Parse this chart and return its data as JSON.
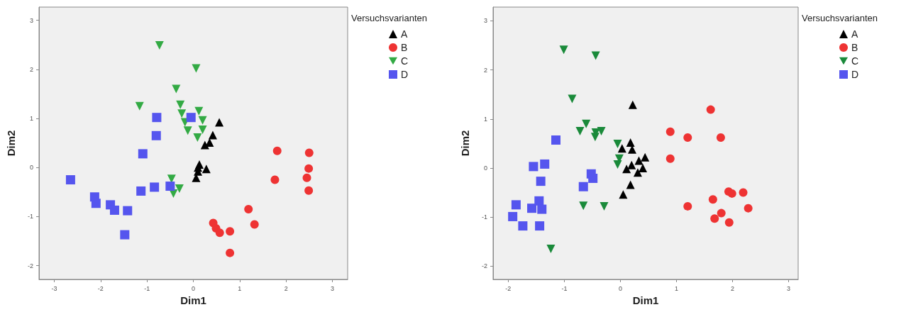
{
  "chart_data": [
    {
      "type": "scatter",
      "xlabel": "Dim1",
      "ylabel": "Dim2",
      "legend_title": "Versuchsvarianten",
      "legend": "top right",
      "xlim": [
        -3.33,
        3.33
      ],
      "ylim": [
        -2.28,
        3.27
      ],
      "xticks": [
        -3,
        -2,
        -1,
        0,
        1,
        2,
        3
      ],
      "yticks": [
        -2,
        -1,
        0,
        1,
        2,
        3
      ],
      "series": [
        {
          "name": "A",
          "color": "#000000",
          "marker": "triangle",
          "x": [
            0.56,
            0.42,
            0.35,
            0.25,
            0.13,
            0.28,
            0.1,
            0.06,
            0.1
          ],
          "values": [
            0.92,
            0.66,
            0.51,
            0.46,
            0.06,
            -0.03,
            -0.08,
            -0.21,
            0.0
          ]
        },
        {
          "name": "B",
          "color": "#ee3333",
          "marker": "circle",
          "x": [
            1.81,
            2.5,
            2.49,
            1.76,
            2.45,
            2.49,
            1.19,
            1.32,
            0.43,
            0.49,
            0.57,
            0.79,
            0.79
          ],
          "values": [
            0.34,
            0.3,
            -0.02,
            -0.25,
            -0.21,
            -0.47,
            -0.85,
            -1.16,
            -1.13,
            -1.24,
            -1.33,
            -1.3,
            -1.74
          ]
        },
        {
          "name": "C",
          "color": "#33aa44",
          "marker": "triangle-down",
          "x": [
            -0.73,
            0.06,
            -0.37,
            -1.16,
            -0.28,
            -0.25,
            -0.18,
            -0.12,
            0.12,
            0.2,
            0.2,
            0.09,
            -0.47,
            -0.3,
            -0.43
          ],
          "values": [
            2.49,
            2.02,
            1.6,
            1.25,
            1.28,
            1.1,
            0.92,
            0.75,
            1.15,
            0.96,
            0.77,
            0.61,
            -0.23,
            -0.43,
            -0.53
          ]
        },
        {
          "name": "D",
          "color": "#5555ee",
          "marker": "square",
          "x": [
            -0.79,
            -0.05,
            -0.8,
            -1.09,
            -2.65,
            -1.13,
            -0.84,
            -0.5,
            -2.13,
            -2.1,
            -1.79,
            -1.7,
            -1.42,
            -1.48
          ],
          "values": [
            1.02,
            1.02,
            0.65,
            0.28,
            -0.25,
            -0.48,
            -0.4,
            -0.38,
            -0.6,
            -0.73,
            -0.76,
            -0.87,
            -0.88,
            -1.37
          ]
        }
      ]
    },
    {
      "type": "scatter",
      "xlabel": "Dim1",
      "ylabel": "Dim2",
      "legend_title": "Versuchsvarianten",
      "legend": "top right",
      "xlim": [
        -2.27,
        3.17
      ],
      "ylim": [
        -2.27,
        3.28
      ],
      "xticks": [
        -2,
        -1,
        0,
        1,
        2,
        3
      ],
      "yticks": [
        -2,
        -1,
        0,
        1,
        2,
        3
      ],
      "series": [
        {
          "name": "A",
          "color": "#000000",
          "marker": "triangle",
          "x": [
            0.22,
            0.18,
            0.03,
            0.21,
            0.44,
            0.33,
            0.2,
            0.11,
            0.31,
            0.4,
            0.18,
            0.05
          ],
          "values": [
            1.29,
            0.52,
            0.4,
            0.38,
            0.22,
            0.15,
            0.06,
            -0.02,
            -0.09,
            0.0,
            -0.34,
            -0.54
          ]
        },
        {
          "name": "B",
          "color": "#ee3333",
          "marker": "circle",
          "x": [
            1.61,
            0.89,
            1.2,
            1.79,
            0.89,
            1.93,
            1.99,
            2.19,
            1.65,
            1.2,
            2.28,
            1.8,
            1.68,
            1.94
          ],
          "values": [
            1.19,
            0.74,
            0.62,
            0.62,
            0.19,
            -0.48,
            -0.52,
            -0.5,
            -0.64,
            -0.78,
            -0.82,
            -0.92,
            -1.03,
            -1.11
          ]
        },
        {
          "name": "C",
          "color": "#1a8a3a",
          "marker": "triangle-down",
          "x": [
            -1.01,
            -0.44,
            -0.86,
            -0.61,
            -0.72,
            -0.44,
            -0.34,
            -0.45,
            -0.05,
            -0.02,
            -0.05,
            -0.66,
            -0.29,
            -1.24
          ],
          "values": [
            2.41,
            2.29,
            1.41,
            0.9,
            0.75,
            0.72,
            0.75,
            0.63,
            0.49,
            0.19,
            0.07,
            -0.77,
            -0.78,
            -1.65
          ]
        },
        {
          "name": "D",
          "color": "#5555ee",
          "marker": "square",
          "x": [
            -1.15,
            -1.35,
            -1.55,
            -1.42,
            -0.52,
            -0.49,
            -0.66,
            -1.86,
            -1.58,
            -1.45,
            -1.4,
            -1.92,
            -1.74,
            -1.44
          ],
          "values": [
            0.57,
            0.08,
            0.03,
            -0.27,
            -0.12,
            -0.21,
            -0.38,
            -0.75,
            -0.82,
            -0.67,
            -0.84,
            -0.99,
            -1.18,
            -1.18
          ]
        }
      ]
    }
  ]
}
